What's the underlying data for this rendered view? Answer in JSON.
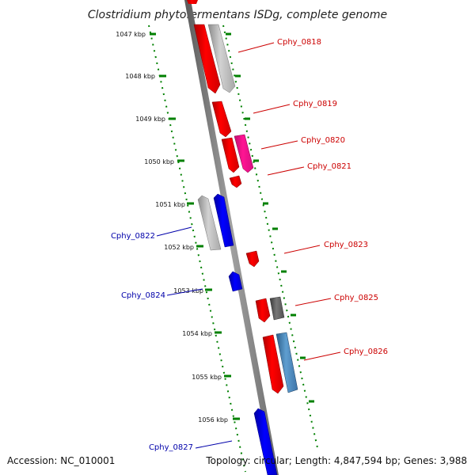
{
  "title": "Clostridium phytofermentans ISDg, complete genome",
  "footer": {
    "accession": "Accession: NC_010001",
    "summary": "Topology: circular; Length: 4,847,594 bp; Genes: 3,988"
  },
  "kbp_ticks": [
    "1047 kbp",
    "1048 kbp",
    "1049 kbp",
    "1050 kbp",
    "1051 kbp",
    "1052 kbp",
    "1053 kbp",
    "1054 kbp",
    "1055 kbp",
    "1056 kbp"
  ],
  "gene_labels": [
    {
      "name": "Cphy_0818",
      "strand": "plus"
    },
    {
      "name": "Cphy_0819",
      "strand": "plus"
    },
    {
      "name": "Cphy_0820",
      "strand": "plus"
    },
    {
      "name": "Cphy_0821",
      "strand": "plus"
    },
    {
      "name": "Cphy_0822",
      "strand": "minus"
    },
    {
      "name": "Cphy_0823",
      "strand": "plus"
    },
    {
      "name": "Cphy_0824",
      "strand": "minus"
    },
    {
      "name": "Cphy_0825",
      "strand": "plus"
    },
    {
      "name": "Cphy_0826",
      "strand": "plus"
    },
    {
      "name": "Cphy_0827",
      "strand": "minus"
    }
  ],
  "colors": {
    "forward_gene": "#ff0000",
    "reverse_gene": "#0000ff",
    "pseudo_gene": "#b4b4b4",
    "dark_gene": "#666666",
    "magenta_gene": "#ff1493",
    "steel_gene": "#4682b4",
    "backbone": "#7f7f7f",
    "tick_marks": "#008000",
    "plus_label": "#cc0000",
    "minus_label": "#0000aa"
  }
}
